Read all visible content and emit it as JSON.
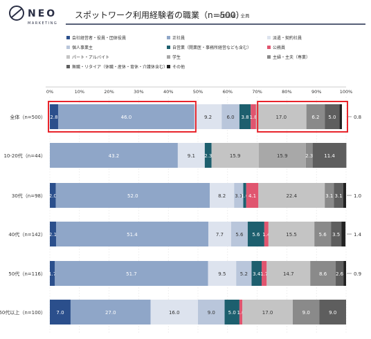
{
  "header": {
    "title": "スポットワーク利用経験者の職業（n=500）",
    "note": "※回答者：全員",
    "logo": "NEO",
    "logo_sub": "MARKETING"
  },
  "colors": {
    "accent_line": "#1f2a4a",
    "highlight": "#e8232a"
  },
  "chart_data": {
    "type": "stacked-bar-horizontal",
    "title": "スポットワーク利用経験者の職業（n=500）",
    "xlim": [
      0,
      100
    ],
    "x_ticks": [
      "0%",
      "10%",
      "20%",
      "30%",
      "40%",
      "50%",
      "60%",
      "70%",
      "80%",
      "90%",
      "100%"
    ],
    "legend_placement": "top",
    "categories": [
      "全体（n=500）",
      "10-20代（n=44）",
      "30代（n=98）",
      "40代（n=142）",
      "50代（n=116）",
      "60代以上（n=100）"
    ],
    "series": [
      {
        "name": "会社経営者・役員・団体役員",
        "color": "#2b4f8c",
        "light": false,
        "values": [
          2.8,
          0.0,
          2.0,
          2.1,
          1.7,
          7.0
        ],
        "labels": [
          "2.8",
          "",
          "2.0",
          "2.1",
          "1.7",
          "7.0"
        ]
      },
      {
        "name": "正社員",
        "color": "#8fa6c8",
        "light": false,
        "values": [
          46.0,
          43.2,
          52.0,
          51.4,
          51.7,
          27.0
        ],
        "labels": [
          "46.0",
          "43.2",
          "52.0",
          "51.4",
          "51.7",
          "27.0"
        ]
      },
      {
        "name": "派遣・契約社員",
        "color": "#dde3ee",
        "light": true,
        "values": [
          9.2,
          9.1,
          8.2,
          7.7,
          9.5,
          16.0
        ],
        "labels": [
          "9.2",
          "9.1",
          "8.2",
          "7.7",
          "9.5",
          "16.0"
        ]
      },
      {
        "name": "個人事業主",
        "color": "#b9c6db",
        "light": true,
        "values": [
          6.0,
          0.0,
          3.1,
          5.6,
          5.2,
          9.0
        ],
        "labels": [
          "6.0",
          "",
          "3.1",
          "5.6",
          "5.2",
          "9.0"
        ]
      },
      {
        "name": "自営業（開業医・事務所経営なども含む）",
        "color": "#1d5f6e",
        "light": false,
        "values": [
          3.8,
          2.3,
          1.0,
          5.6,
          3.4,
          5.0
        ],
        "labels": [
          "3.8",
          "2.3",
          "1.0",
          "5.6",
          "3.4",
          "5.0"
        ]
      },
      {
        "name": "公務員",
        "color": "#e0556f",
        "light": false,
        "values": [
          1.8,
          0.0,
          4.1,
          1.4,
          1.7,
          1.0
        ],
        "labels": [
          "1.8",
          "",
          "4.1",
          "1.4",
          "1.7",
          "1.0"
        ]
      },
      {
        "name": "パート・アルバイト",
        "color": "#c4c4c4",
        "light": true,
        "values": [
          17.0,
          15.9,
          22.4,
          15.5,
          14.7,
          17.0
        ],
        "labels": [
          "17.0",
          "15.9",
          "22.4",
          "15.5",
          "14.7",
          "17.0"
        ]
      },
      {
        "name": "学生",
        "color": "#a8a8a8",
        "light": true,
        "values": [
          0.0,
          15.9,
          0.0,
          0.0,
          0.0,
          0.0
        ],
        "labels": [
          "",
          "15.9",
          "",
          "",
          "",
          ""
        ]
      },
      {
        "name": "主婦・主夫（専業）",
        "color": "#8a8a8a",
        "light": false,
        "values": [
          6.2,
          2.3,
          3.1,
          5.6,
          8.6,
          9.0
        ],
        "labels": [
          "6.2",
          "2.3",
          "3.1",
          "5.6",
          "8.6",
          "9.0"
        ]
      },
      {
        "name": "無職・リタイア（休職・産休・育休・介護休含む）",
        "color": "#5e5e5e",
        "light": false,
        "values": [
          5.0,
          11.4,
          3.1,
          3.5,
          2.6,
          9.0
        ],
        "labels": [
          "5.0",
          "11.4",
          "3.1",
          "3.5",
          "2.6",
          "9.0"
        ]
      },
      {
        "name": "その他",
        "color": "#222222",
        "light": false,
        "values": [
          0.8,
          0.0,
          1.0,
          1.4,
          0.9,
          0.0
        ],
        "labels": [
          "",
          "",
          "",
          "",
          "",
          ""
        ]
      }
    ],
    "outside_labels": [
      "0.8",
      "",
      "1.0",
      "1.4",
      "0.9",
      ""
    ],
    "highlight_frames": [
      {
        "row": 0,
        "from": 0,
        "to": 48.8
      },
      {
        "row": 0,
        "from": 70.6,
        "to": 100
      }
    ]
  }
}
